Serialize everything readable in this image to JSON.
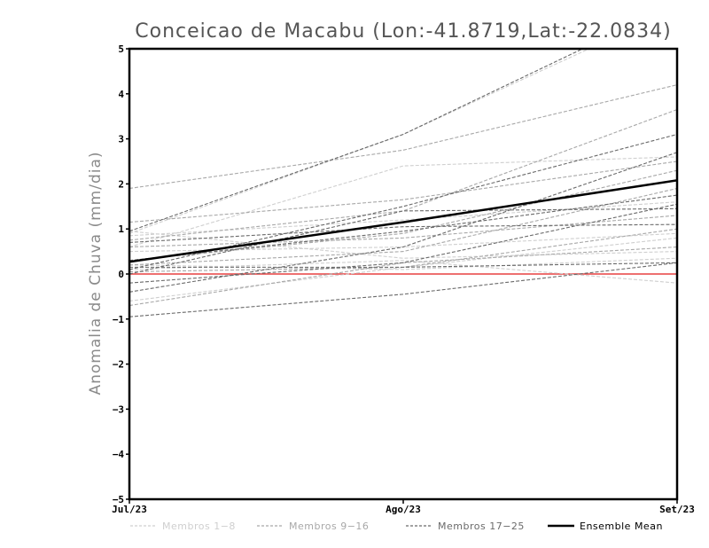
{
  "chart_data": {
    "type": "line",
    "title": "Conceicao de Macabu (Lon:-41.8719,Lat:-22.0834)",
    "ylabel": "Anomalia de Chuva (mm/dia)",
    "xlabel": "",
    "x": [
      "Jul/23",
      "Ago/23",
      "Set/23"
    ],
    "ylim": [
      -5,
      5
    ],
    "yticks": [
      -5,
      -4,
      -3,
      -2,
      -1,
      0,
      1,
      2,
      3,
      4,
      5
    ],
    "zero_line_color": "#e84040",
    "groups": [
      {
        "name": "Membros 1-8",
        "color": "#cfcfcf",
        "series": [
          {
            "values": [
              0.9,
              3.1,
              5.9
            ]
          },
          {
            "values": [
              0.6,
              2.4,
              2.6
            ]
          },
          {
            "values": [
              0.95,
              0.35,
              0.5
            ]
          },
          {
            "values": [
              0.1,
              0.3,
              -0.2
            ]
          },
          {
            "values": [
              0.5,
              0.6,
              0.9
            ]
          },
          {
            "values": [
              0.85,
              1.2,
              1.6
            ]
          },
          {
            "values": [
              -0.6,
              0.15,
              0.8
            ]
          },
          {
            "values": [
              0.2,
              0.1,
              0.35
            ]
          }
        ]
      },
      {
        "name": "Membros 9-16",
        "color": "#a8a8a8",
        "series": [
          {
            "values": [
              1.9,
              2.75,
              4.2
            ]
          },
          {
            "values": [
              1.15,
              1.65,
              2.5
            ]
          },
          {
            "values": [
              0.75,
              1.4,
              3.65
            ]
          },
          {
            "values": [
              0.2,
              0.5,
              1.9
            ]
          },
          {
            "values": [
              0.05,
              0.15,
              1.0
            ]
          },
          {
            "values": [
              -0.7,
              0.25,
              0.6
            ]
          },
          {
            "values": [
              0.3,
              0.9,
              2.3
            ]
          },
          {
            "values": [
              0.6,
              0.8,
              1.3
            ]
          }
        ]
      },
      {
        "name": "Membros 17-25",
        "color": "#6a6a6a",
        "series": [
          {
            "values": [
              0.95,
              3.1,
              6.0
            ]
          },
          {
            "values": [
              0.1,
              1.5,
              3.1
            ]
          },
          {
            "values": [
              -0.95,
              -0.45,
              0.25
            ]
          },
          {
            "values": [
              -0.4,
              0.6,
              2.7
            ]
          },
          {
            "values": [
              0.7,
              1.05,
              1.1
            ]
          },
          {
            "values": [
              -0.2,
              0.25,
              1.55
            ]
          },
          {
            "values": [
              0.3,
              0.95,
              1.75
            ]
          },
          {
            "values": [
              0.0,
              1.4,
              1.45
            ]
          },
          {
            "values": [
              0.15,
              0.15,
              0.25
            ]
          }
        ]
      },
      {
        "name": "Ensemble Mean",
        "color": "#000000",
        "series": [
          {
            "values": [
              0.27,
              1.15,
              2.08
            ]
          }
        ]
      }
    ],
    "legend": [
      "Membros 1-8",
      "Membros 9-16",
      "Membros 17-25",
      "Ensemble Mean"
    ],
    "legend_position": "bottom"
  }
}
